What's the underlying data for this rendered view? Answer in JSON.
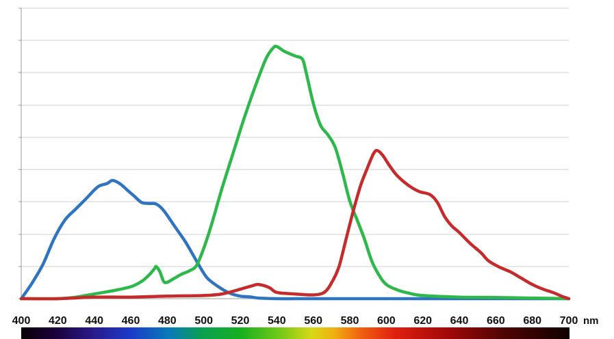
{
  "chart_data": {
    "type": "line",
    "title": "",
    "xlabel": "",
    "ylabel": "",
    "x_unit": "nm",
    "xlim": [
      400,
      700
    ],
    "ylim": [
      0,
      8
    ],
    "grid": "horizontal",
    "legend": "none",
    "x_ticks": [
      400,
      420,
      440,
      460,
      480,
      500,
      520,
      540,
      560,
      580,
      600,
      620,
      640,
      660,
      680,
      700
    ],
    "spectrum_bar": true,
    "series": [
      {
        "color": "#2f74c0",
        "points": [
          [
            400,
            0.0
          ],
          [
            406,
            0.5
          ],
          [
            412,
            1.1
          ],
          [
            418,
            1.9
          ],
          [
            424,
            2.5
          ],
          [
            430,
            2.85
          ],
          [
            436,
            3.2
          ],
          [
            442,
            3.55
          ],
          [
            447,
            3.65
          ],
          [
            450,
            3.75
          ],
          [
            454,
            3.65
          ],
          [
            458,
            3.45
          ],
          [
            462,
            3.25
          ],
          [
            466,
            3.05
          ],
          [
            470,
            3.02
          ],
          [
            474,
            3.0
          ],
          [
            478,
            2.8
          ],
          [
            484,
            2.3
          ],
          [
            490,
            1.8
          ],
          [
            494,
            1.4
          ],
          [
            498,
            1.0
          ],
          [
            502,
            0.65
          ],
          [
            508,
            0.38
          ],
          [
            514,
            0.18
          ],
          [
            520,
            0.08
          ],
          [
            525,
            0.06
          ],
          [
            530,
            0.02
          ],
          [
            540,
            0.0
          ],
          [
            560,
            0.0
          ],
          [
            600,
            0.0
          ],
          [
            650,
            0.0
          ],
          [
            700,
            0.0
          ]
        ]
      },
      {
        "color": "#2db84a",
        "points": [
          [
            400,
            0.0
          ],
          [
            420,
            0.0
          ],
          [
            430,
            0.05
          ],
          [
            440,
            0.15
          ],
          [
            450,
            0.25
          ],
          [
            460,
            0.38
          ],
          [
            466,
            0.55
          ],
          [
            470,
            0.75
          ],
          [
            473,
            0.95
          ],
          [
            474,
            1.02
          ],
          [
            476,
            0.85
          ],
          [
            478,
            0.55
          ],
          [
            480,
            0.52
          ],
          [
            484,
            0.65
          ],
          [
            488,
            0.78
          ],
          [
            492,
            0.88
          ],
          [
            496,
            1.05
          ],
          [
            500,
            1.6
          ],
          [
            504,
            2.3
          ],
          [
            510,
            3.5
          ],
          [
            516,
            4.6
          ],
          [
            522,
            5.7
          ],
          [
            528,
            6.7
          ],
          [
            534,
            7.6
          ],
          [
            538,
            7.95
          ],
          [
            540,
            8.0
          ],
          [
            544,
            7.85
          ],
          [
            550,
            7.7
          ],
          [
            554,
            7.6
          ],
          [
            556,
            7.2
          ],
          [
            560,
            6.2
          ],
          [
            564,
            5.5
          ],
          [
            568,
            5.2
          ],
          [
            572,
            4.8
          ],
          [
            576,
            4.0
          ],
          [
            580,
            3.1
          ],
          [
            584,
            2.5
          ],
          [
            588,
            1.9
          ],
          [
            592,
            1.2
          ],
          [
            596,
            0.75
          ],
          [
            600,
            0.45
          ],
          [
            606,
            0.28
          ],
          [
            612,
            0.18
          ],
          [
            620,
            0.1
          ],
          [
            640,
            0.05
          ],
          [
            660,
            0.04
          ],
          [
            680,
            0.02
          ],
          [
            700,
            0.0
          ]
        ]
      },
      {
        "color": "#c62a2a",
        "points": [
          [
            400,
            0.0
          ],
          [
            420,
            0.0
          ],
          [
            440,
            0.05
          ],
          [
            460,
            0.05
          ],
          [
            480,
            0.08
          ],
          [
            500,
            0.1
          ],
          [
            510,
            0.15
          ],
          [
            520,
            0.3
          ],
          [
            526,
            0.4
          ],
          [
            530,
            0.45
          ],
          [
            536,
            0.35
          ],
          [
            540,
            0.2
          ],
          [
            550,
            0.15
          ],
          [
            560,
            0.12
          ],
          [
            566,
            0.2
          ],
          [
            570,
            0.5
          ],
          [
            574,
            1.0
          ],
          [
            578,
            1.9
          ],
          [
            582,
            2.8
          ],
          [
            586,
            3.6
          ],
          [
            590,
            4.2
          ],
          [
            593,
            4.6
          ],
          [
            595,
            4.7
          ],
          [
            598,
            4.55
          ],
          [
            602,
            4.2
          ],
          [
            606,
            3.9
          ],
          [
            612,
            3.6
          ],
          [
            618,
            3.4
          ],
          [
            624,
            3.3
          ],
          [
            628,
            3.05
          ],
          [
            632,
            2.6
          ],
          [
            636,
            2.3
          ],
          [
            640,
            2.1
          ],
          [
            646,
            1.75
          ],
          [
            652,
            1.45
          ],
          [
            656,
            1.2
          ],
          [
            662,
            1.0
          ],
          [
            668,
            0.85
          ],
          [
            674,
            0.65
          ],
          [
            680,
            0.45
          ],
          [
            686,
            0.3
          ],
          [
            692,
            0.18
          ],
          [
            696,
            0.08
          ],
          [
            700,
            0.0
          ]
        ]
      }
    ]
  }
}
